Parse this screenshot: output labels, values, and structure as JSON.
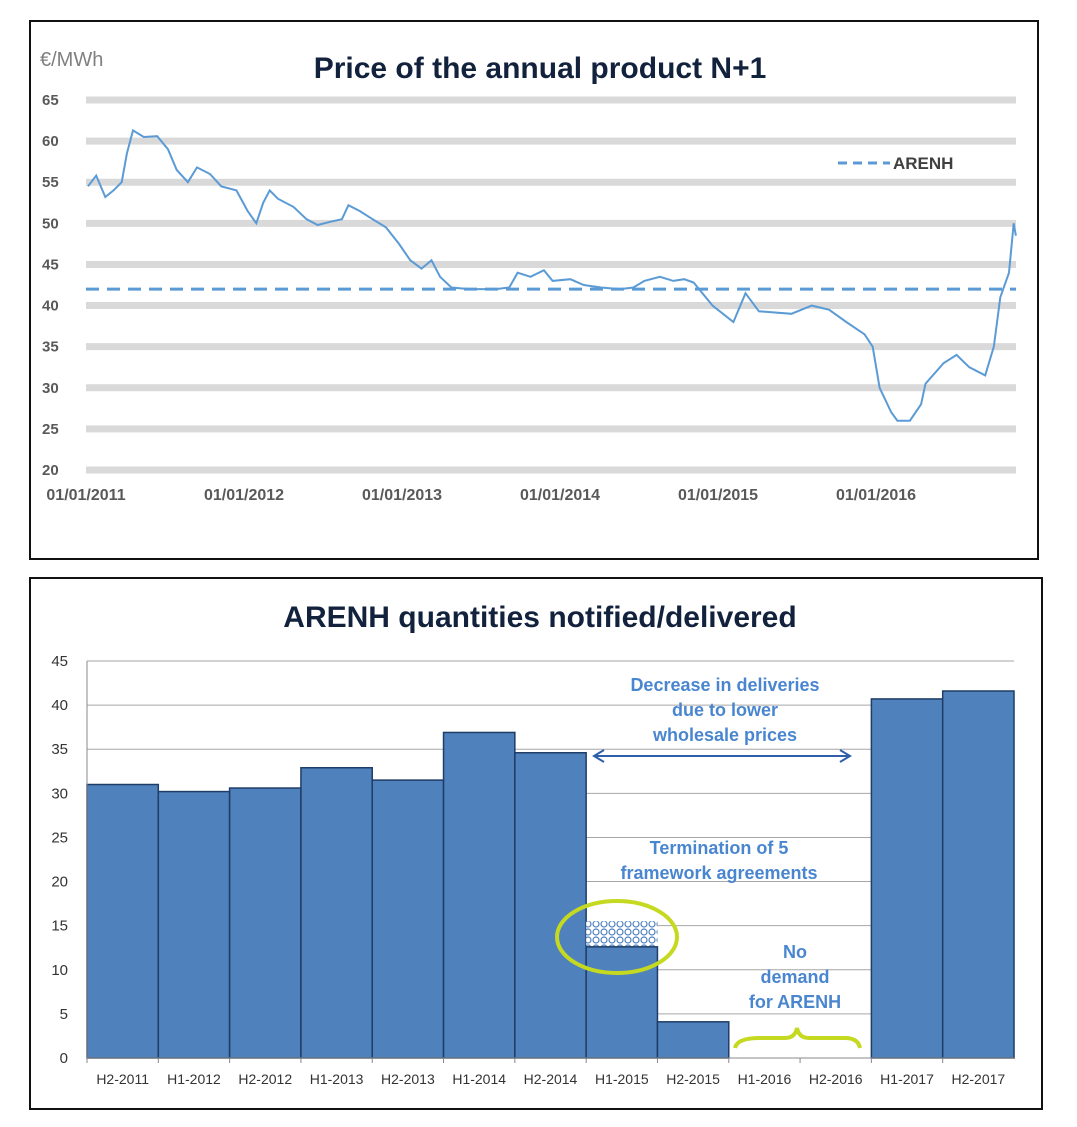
{
  "chart_data": [
    {
      "type": "line",
      "title": "Price of the annual product N+1",
      "ylabel": "€/MWh",
      "ylim": [
        20,
        65
      ],
      "yticks": [
        65,
        60,
        55,
        50,
        45,
        40,
        35,
        30,
        25,
        20
      ],
      "xticks": [
        "01/01/2011",
        "01/01/2012",
        "01/01/2013",
        "01/01/2014",
        "01/01/2015",
        "01/01/2016"
      ],
      "grid": true,
      "legend": {
        "position": "top-right",
        "entries": [
          "ARENH"
        ]
      },
      "color": "#5b9bd5",
      "series": [
        {
          "name": "price",
          "points": [
            [
              "2011-01-01",
              54.5
            ],
            [
              "2011-01-20",
              55.8
            ],
            [
              "2011-02-10",
              53.2
            ],
            [
              "2011-03-01",
              54
            ],
            [
              "2011-03-20",
              55
            ],
            [
              "2011-04-01",
              58.5
            ],
            [
              "2011-04-15",
              61.3
            ],
            [
              "2011-05-10",
              60.5
            ],
            [
              "2011-06-10",
              60.6
            ],
            [
              "2011-07-05",
              59
            ],
            [
              "2011-07-25",
              56.5
            ],
            [
              "2011-08-20",
              55
            ],
            [
              "2011-09-10",
              56.8
            ],
            [
              "2011-10-10",
              56
            ],
            [
              "2011-11-05",
              54.5
            ],
            [
              "2011-12-10",
              54
            ],
            [
              "2012-01-05",
              51.5
            ],
            [
              "2012-01-25",
              50
            ],
            [
              "2012-02-10",
              52.5
            ],
            [
              "2012-02-25",
              54
            ],
            [
              "2012-03-15",
              53
            ],
            [
              "2012-04-20",
              52
            ],
            [
              "2012-05-20",
              50.5
            ],
            [
              "2012-06-15",
              49.8
            ],
            [
              "2012-07-15",
              50.2
            ],
            [
              "2012-08-10",
              50.5
            ],
            [
              "2012-08-25",
              52.2
            ],
            [
              "2012-09-20",
              51.5
            ],
            [
              "2012-10-20",
              50.5
            ],
            [
              "2012-11-20",
              49.5
            ],
            [
              "2012-12-20",
              47.5
            ],
            [
              "2013-01-15",
              45.5
            ],
            [
              "2013-02-10",
              44.5
            ],
            [
              "2013-03-05",
              45.5
            ],
            [
              "2013-03-25",
              43.5
            ],
            [
              "2013-04-20",
              42.2
            ],
            [
              "2013-06-01",
              42
            ],
            [
              "2013-08-01",
              42
            ],
            [
              "2013-09-01",
              42.2
            ],
            [
              "2013-09-20",
              44
            ],
            [
              "2013-10-20",
              43.5
            ],
            [
              "2013-11-20",
              44.3
            ],
            [
              "2013-12-10",
              43
            ],
            [
              "2014-01-20",
              43.2
            ],
            [
              "2014-02-20",
              42.5
            ],
            [
              "2014-04-01",
              42.2
            ],
            [
              "2014-05-15",
              42
            ],
            [
              "2014-06-15",
              42.2
            ],
            [
              "2014-07-10",
              43
            ],
            [
              "2014-08-15",
              43.5
            ],
            [
              "2014-09-15",
              43
            ],
            [
              "2014-10-10",
              43.2
            ],
            [
              "2014-11-01",
              42.8
            ],
            [
              "2014-12-15",
              40
            ],
            [
              "2015-02-01",
              38
            ],
            [
              "2015-03-01",
              41.5
            ],
            [
              "2015-04-01",
              39.3
            ],
            [
              "2015-06-15",
              39
            ],
            [
              "2015-08-01",
              40
            ],
            [
              "2015-09-10",
              39.5
            ],
            [
              "2015-10-20",
              38
            ],
            [
              "2015-12-01",
              36.5
            ],
            [
              "2015-12-20",
              35
            ],
            [
              "2016-01-05",
              30
            ],
            [
              "2016-02-01",
              27
            ],
            [
              "2016-02-15",
              26
            ],
            [
              "2016-03-15",
              26
            ],
            [
              "2016-04-10",
              28
            ],
            [
              "2016-04-20",
              30.5
            ],
            [
              "2016-06-01",
              33
            ],
            [
              "2016-07-01",
              34
            ],
            [
              "2016-07-30",
              32.5
            ],
            [
              "2016-09-05",
              31.5
            ],
            [
              "2016-09-25",
              35
            ],
            [
              "2016-10-10",
              41
            ],
            [
              "2016-10-30",
              44
            ],
            [
              "2016-11-10",
              50
            ],
            [
              "2016-11-15",
              48.5
            ]
          ]
        },
        {
          "name": "ARENH",
          "value": 42,
          "style": "dashed"
        }
      ]
    },
    {
      "type": "bar",
      "title": "ARENH quantities notified/delivered",
      "ylim": [
        0,
        45
      ],
      "yticks": [
        0,
        5,
        10,
        15,
        20,
        25,
        30,
        35,
        40,
        45
      ],
      "categories": [
        "H2-2011",
        "H1-2012",
        "H2-2012",
        "H1-2013",
        "H2-2013",
        "H1-2014",
        "H2-2014",
        "H1-2015",
        "H2-2015",
        "H1-2016",
        "H2-2016",
        "H1-2017",
        "H2-2017"
      ],
      "values": [
        31,
        30.2,
        30.6,
        32.9,
        31.5,
        36.9,
        34.6,
        12.6,
        4.1,
        0,
        0,
        40.7,
        41.6
      ],
      "hatched_extra": {
        "category": "H1-2015",
        "top": 15.5
      },
      "color": "#4f81bd",
      "annotations": {
        "decrease": [
          "Decrease in deliveries",
          "due to lower",
          "wholesale prices"
        ],
        "termination": [
          "Termination of 5",
          "framework agreements"
        ],
        "nodemand": [
          "No",
          "demand",
          "for ARENH"
        ]
      },
      "highlight_color": "#c5d921"
    }
  ]
}
